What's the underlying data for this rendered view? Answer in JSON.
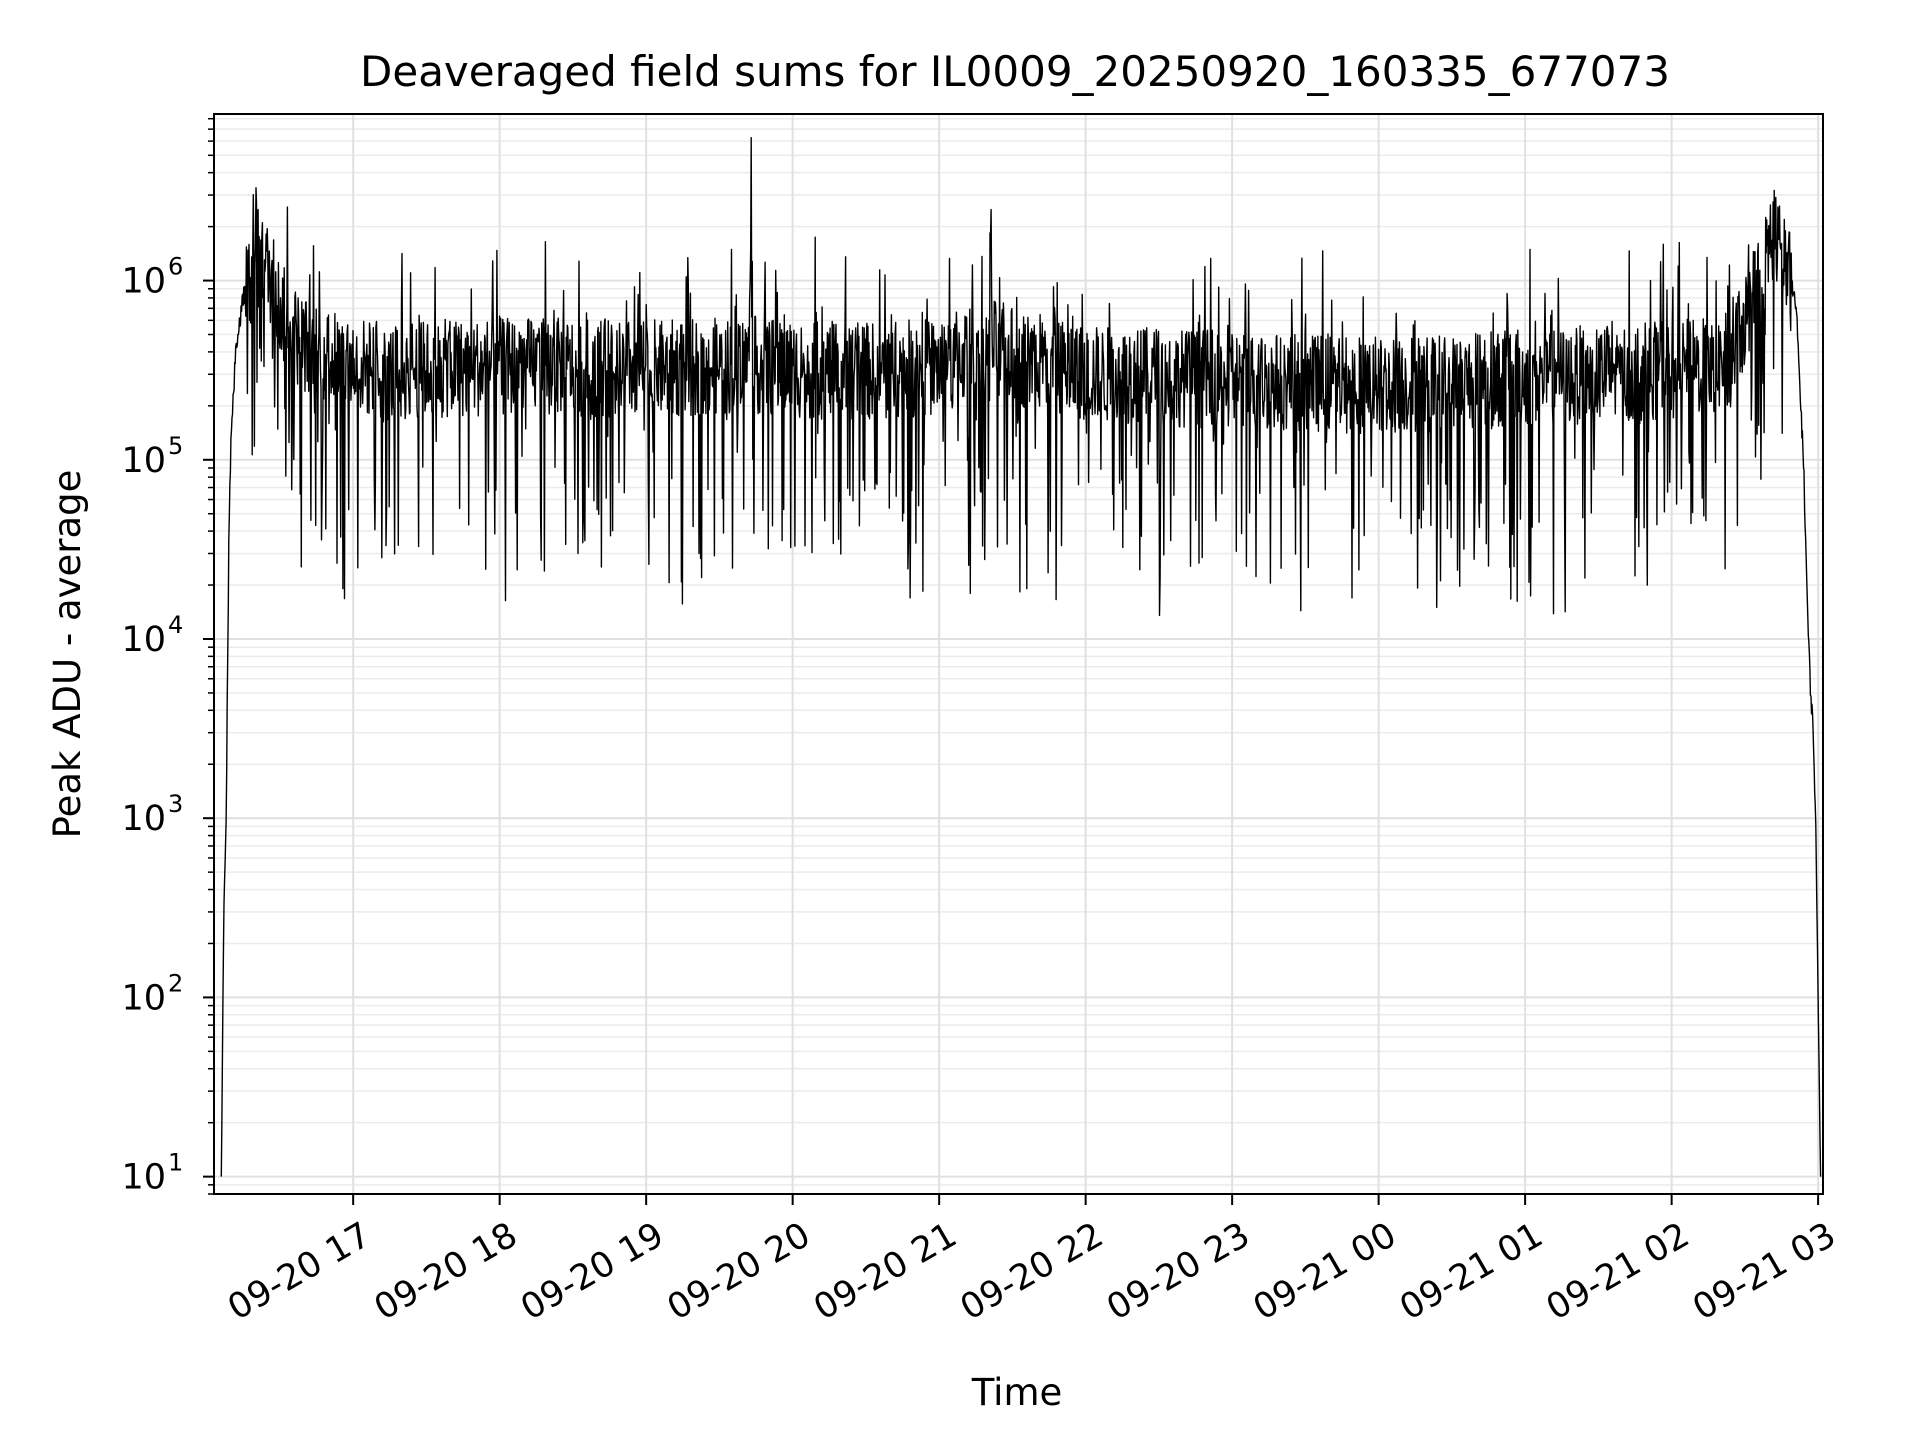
{
  "chart_data": {
    "type": "line",
    "title": "Deaveraged field sums for IL0009_20250920_160335_677073",
    "xlabel": "Time",
    "ylabel": "Peak ADU - average",
    "x_scale": "time",
    "y_scale": "log",
    "xlim": [
      "2025-09-20 16:03",
      "2025-09-21 03:02"
    ],
    "ylim": [
      8,
      8500000
    ],
    "grid": true,
    "line_color": "#000000",
    "x_ticks": [
      "09-20 17",
      "09-20 18",
      "09-20 19",
      "09-20 20",
      "09-20 21",
      "09-20 22",
      "09-20 23",
      "09-21 00",
      "09-21 01",
      "09-21 02",
      "09-21 03"
    ],
    "y_ticks": [
      {
        "base": "10",
        "exp": "1"
      },
      {
        "base": "10",
        "exp": "2"
      },
      {
        "base": "10",
        "exp": "3"
      },
      {
        "base": "10",
        "exp": "4"
      },
      {
        "base": "10",
        "exp": "5"
      },
      {
        "base": "10",
        "exp": "6"
      }
    ],
    "series": [
      {
        "x": [
          "2025-09-20 16:06",
          "2025-09-20 16:07",
          "2025-09-20 16:08",
          "2025-09-20 16:09",
          "2025-09-20 16:10",
          "2025-09-20 16:12",
          "2025-09-20 16:15",
          "2025-09-20 16:18",
          "2025-09-20 16:21",
          "2025-09-20 16:24",
          "2025-09-20 16:27",
          "2025-09-20 16:30",
          "2025-09-20 16:36",
          "2025-09-20 16:42",
          "2025-09-20 16:48",
          "2025-09-20 16:54",
          "2025-09-20 17:00",
          "2025-09-20 17:04",
          "2025-09-20 17:12",
          "2025-09-20 17:30",
          "2025-09-20 18:00",
          "2025-09-20 18:30",
          "2025-09-20 19:00",
          "2025-09-20 19:30",
          "2025-09-20 19:42",
          "2025-09-20 19:43",
          "2025-09-20 19:44",
          "2025-09-20 19:50",
          "2025-09-20 20:00",
          "2025-09-20 20:30",
          "2025-09-20 21:00",
          "2025-09-20 21:20",
          "2025-09-20 21:21",
          "2025-09-20 21:22",
          "2025-09-20 21:30",
          "2025-09-20 22:00",
          "2025-09-20 22:30",
          "2025-09-20 23:00",
          "2025-09-20 23:30",
          "2025-09-21 00:00",
          "2025-09-21 00:30",
          "2025-09-21 01:00",
          "2025-09-21 01:30",
          "2025-09-21 02:00",
          "2025-09-21 02:15",
          "2025-09-21 02:24",
          "2025-09-21 02:30",
          "2025-09-21 02:36",
          "2025-09-21 02:39",
          "2025-09-21 02:42",
          "2025-09-21 02:45",
          "2025-09-21 02:48",
          "2025-09-21 02:51",
          "2025-09-21 02:54",
          "2025-09-21 02:56",
          "2025-09-21 02:57",
          "2025-09-21 02:58",
          "2025-09-21 02:59",
          "2025-09-21 03:00",
          "2025-09-21 03:01"
        ],
        "y": [
          10,
          300,
          1000,
          30000,
          150000,
          400000,
          800000,
          1100000,
          1300000,
          1200000,
          1000000,
          700000,
          500000,
          420000,
          380000,
          350000,
          340000,
          330000,
          300000,
          320000,
          330000,
          330000,
          320000,
          330000,
          350000,
          4500000,
          340000,
          330000,
          320000,
          310000,
          330000,
          450000,
          1400000,
          420000,
          380000,
          300000,
          290000,
          280000,
          270000,
          260000,
          270000,
          290000,
          300000,
          320000,
          330000,
          360000,
          600000,
          1000000,
          1400000,
          2000000,
          1300000,
          1100000,
          700000,
          100000,
          10000,
          5000,
          3000,
          1000,
          100,
          10
        ]
      }
    ]
  }
}
